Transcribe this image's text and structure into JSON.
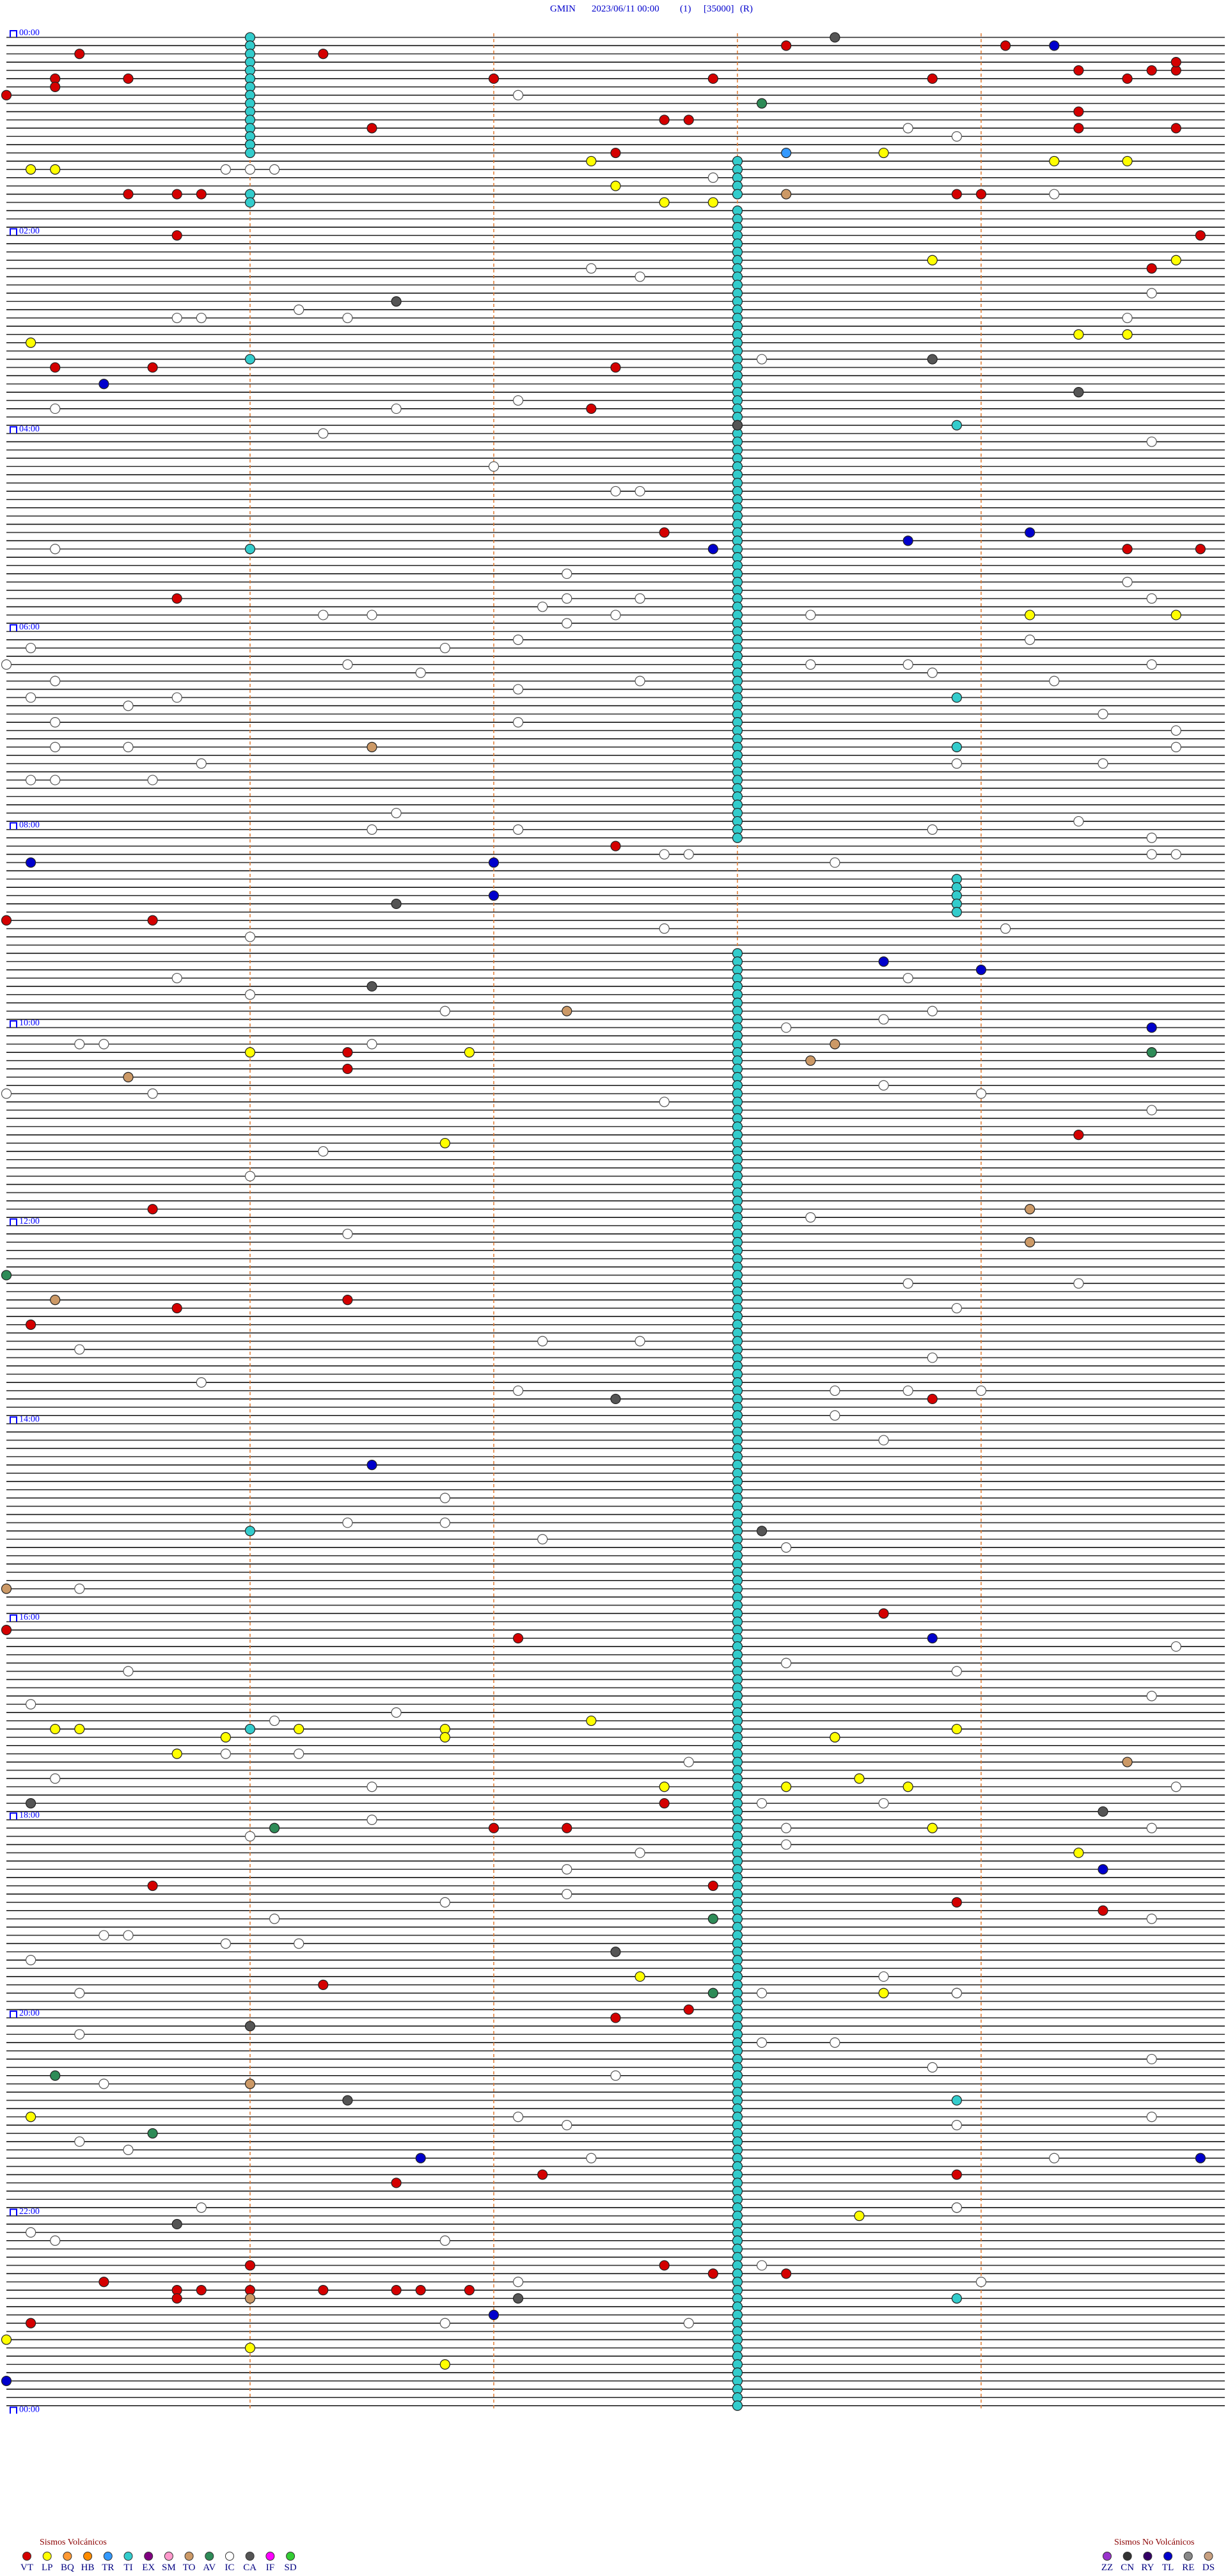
{
  "header": {
    "station": "GMIN",
    "datetime": "2023/06/11 00:00",
    "channel": "(1)",
    "scale": "[35000]",
    "mode": "(R)"
  },
  "hour_labels": [
    "00:00",
    "02:00",
    "04:00",
    "06:00",
    "08:00",
    "10:00",
    "12:00",
    "14:00",
    "16:00",
    "18:00",
    "20:00",
    "22:00",
    "00:00"
  ],
  "events": {
    "VT": [
      10.3,
      11.3,
      8.2,
      9.1,
      25.2,
      25.5,
      27,
      27.9,
      28.8,
      29.6,
      24.4,
      24.7,
      24.8,
      19.8,
      30.2,
      35,
      52.7,
      52.8,
      56.5,
      49.4,
      59.4,
      59.8,
      66,
      72.5,
      95.5,
      95.7,
      95.8,
      98.9,
      99,
      120.7,
      124.9,
      144.7,
      202.5,
      200.6,
      200.2,
      227.4,
      302.7,
      314.6,
      314.9,
      340.7,
      492.5,
      535,
      535.6,
      616.4,
      626.4,
      669.4,
      710.6,
      770.7,
      766.4,
      780.1,
      828.8,
      958.6,
      965,
      972.1,
      1072.7,
      1087,
      1087.3,
      1120.6,
      1122.9,
      1133.9,
      1139.5,
      1181.3,
      1197.8,
      1202.5,
      1298.9,
      1297.2,
      1301.6,
      1351,
      1360.4,
      1365.7,
      1365.8,
      1366,
      1366.3,
      1366.6,
      1366.7,
      1366.9,
      1370.7,
      1352.7,
      1357.9,
      1358,
      1358.2,
      1318,
      1385.1
    ],
    "LP": [
      80.1,
      80.2,
      77.4,
      92.5,
      102.7,
      102.9,
      73.6,
      79.3,
      79.6,
      138.8,
      139.8,
      185.1,
      184.4,
      184.6,
      354.2,
      354.8,
      616,
      616.9,
      671.8,
      1025.2,
      1025.3,
      1026.2,
      1026.8,
      1022.4,
      1030.9,
      1031.8,
      1033.4,
      1033.4,
      1028.9,
      1040.7,
      1062.7,
      1063.2,
      1058.5,
      1063.7,
      1088.8,
      1104.4,
      1177.6,
      1188.6,
      1260.1,
      1323.5,
      1401,
      1411.8,
      1395
    ],
    "TR": [
      1023,
      73.2
    ],
    "TI": [
      1,
      6,
      11,
      16,
      21,
      26,
      31,
      36,
      41,
      46,
      51,
      56,
      61,
      66,
      71,
      1026,
      96,
      101,
      196,
      311,
      906,
      238.9,
      403.9,
      433.9,
      513.9,
      518.9,
      523.9,
      528.9,
      533.9,
      1188.9,
      1253.9,
      1318.9,
      1373.9,
      78,
      83,
      88,
      93,
      98,
      108,
      113,
      118,
      123,
      128,
      133,
      138,
      143,
      148,
      153,
      158,
      163,
      168,
      173,
      178,
      183,
      188,
      193,
      198,
      203,
      208,
      213,
      218,
      223,
      228,
      233,
      238,
      243,
      248,
      253,
      258,
      263,
      268,
      273,
      278,
      283,
      288,
      293,
      298,
      303,
      308,
      313,
      318,
      323,
      328,
      333,
      338,
      343,
      348,
      353,
      358,
      363,
      368,
      373,
      378,
      383,
      388,
      393,
      398,
      403,
      408,
      413,
      418,
      423,
      428,
      433,
      438,
      443,
      448,
      453,
      458,
      463,
      468,
      473,
      478,
      483,
      488,
      558,
      563,
      568,
      573,
      578,
      583,
      588,
      593,
      598,
      603,
      608,
      613,
      618,
      623,
      628,
      633,
      638,
      643,
      648,
      653,
      658,
      663,
      668,
      673,
      678,
      683,
      688,
      693,
      698,
      703,
      708,
      713,
      718,
      723,
      728,
      733,
      738,
      743,
      748,
      753,
      758,
      763,
      768,
      773,
      778,
      783,
      788,
      793,
      798,
      803,
      808,
      813,
      818,
      823,
      828,
      833,
      838,
      843,
      848,
      853,
      858,
      863,
      868,
      873,
      878,
      883,
      888,
      893,
      898,
      903,
      908,
      913,
      918,
      923,
      928,
      933,
      938,
      943,
      948,
      953,
      958,
      963,
      968,
      973,
      978,
      983,
      988,
      993,
      998,
      1003,
      1008,
      1013,
      1018,
      1023,
      1028,
      1033,
      1038,
      1043,
      1048,
      1053,
      1058,
      1063,
      1068,
      1073,
      1078,
      1083,
      1088,
      1093,
      1098,
      1103,
      1108,
      1113,
      1118,
      1123,
      1128,
      1133,
      1138,
      1143,
      1148,
      1153,
      1158,
      1163,
      1168,
      1173,
      1178,
      1183,
      1188,
      1193,
      1198,
      1203,
      1208,
      1213,
      1218,
      1223,
      1228,
      1233,
      1238,
      1243,
      1248,
      1253,
      1258,
      1263,
      1268,
      1273,
      1278,
      1283,
      1288,
      1293,
      1298,
      1303,
      1308,
      1313,
      1318,
      1323,
      1328,
      1333,
      1338,
      1343,
      1348,
      1353,
      1358,
      1363,
      1368,
      1373,
      1378,
      1383,
      1388,
      1393,
      1398,
      1403,
      1408,
      1413,
      1418,
      1423,
      1428,
      1433,
      1438
    ],
    "AV": [
      43.1,
      619.7,
      750,
      1086.1,
      1142.9,
      1187.9,
      1235.2,
      1270.6
    ],
    "TO": [
      431.5,
      592.3,
      613.4,
      630.5,
      623.3,
      714.2,
      734.2,
      765.2,
      940,
      1049.6,
      1241,
      1371,
      98.2
    ],
    "IC": [
      37.1,
      58.7,
      63.9,
      80.9,
      81,
      81.1,
      87.9,
      99.3,
      142.4,
      147.6,
      159.7,
      166.2,
      170.7,
      170.8,
      171.4,
      174.6,
      198.1,
      225.2,
      226.6,
      222.1,
      241.3,
      249.7,
      262,
      277.5,
      277.6,
      310.2,
      327.3,
      334.6,
      342.3,
      342.6,
      344.7,
      347.2,
      351.3,
      351.5,
      352.5,
      353.3,
      357.3,
      367.1,
      370.1,
      371.8,
      369.2,
      381.4,
      380,
      383.3,
      383.7,
      384.7,
      386.7,
      390.2,
      392.6,
      388.8,
      394.3,
      400.1,
      400.7,
      397.1,
      405.5,
      414.5,
      415.2,
      417.1,
      424.8,
      430.2,
      430.5,
      434.8,
      440.8,
      444.5,
      443.9,
      450.1,
      450.2,
      450.6,
      471.6,
      479.4,
      481.5,
      483.8,
      482.1,
      497.7,
      497.8,
      503.4,
      489.7,
      499.7,
      499.8,
      544.1,
      542.7,
      546,
      570.7,
      573.7,
      581,
      591.8,
      593.8,
      610.3,
      610.4,
      611.5,
      598.6,
      603.2,
      640.6,
      638.6,
      644,
      647.7,
      640,
      654.7,
      676.3,
      691,
      718.3,
      726.4,
      758.7,
      759.4,
      773.9,
      795.3,
      792.2,
      792.6,
      803.8,
      815.8,
      822.1,
      823.4,
      823.7,
      838.4,
      824,
      853.6,
      886.8,
      901.4,
      901.8,
      912.2,
      918.2,
      940.3,
      979.8,
      990.5,
      988.2,
      993.9,
      1009.7,
      1010.1,
      1016.6,
      1021.1,
      1041.2,
      1040.9,
      1047.8,
      1055.2,
      1061.5,
      1064.8,
      1073.1,
      1073.6,
      1081.5,
      1088.2,
      1091,
      1098.2,
      1089.7,
      1102.6,
      1112.3,
      1127.3,
      1144.7,
      1131.8,
      1141.1,
      1150.4,
      1150.5,
      1155.9,
      1156.2,
      1165.1,
      1178.6,
      1188.9,
      1188.1,
      1185.3,
      1210.3,
      1218.1,
      1218.4,
      1229.7,
      1237.5,
      1233.8,
      1240.4,
      1262.1,
      1264.7,
      1267.3,
      1275.3,
      1268.9,
      1280.5,
      1287.4,
      1289.3,
      1315.8,
      1330.1,
      1335.2,
      1336.8,
      1318.9,
      1353.1,
      1362.1,
      1364,
      1386.8,
      1387.8
    ],
    "CA": [
      3.4,
      161.6,
      198.8,
      219.4,
      238,
      526.6,
      576.5,
      827.5,
      908.1,
      1070.1,
      1079.5,
      1162.5,
      1206,
      1251.4,
      1325.7,
      1372.1
    ],
    "TL": [
      9.3,
      312.9,
      308.7,
      304.2,
      500.1,
      502,
      522,
      563.6,
      569,
      604.7,
      866.5,
      973.8,
      1114.5,
      1286.7,
      1289.9,
      1382,
      1420,
      210.4
    ]
  },
  "legend": {
    "volcanic": {
      "title": "Sismos Volcánicos",
      "items": [
        {
          "code": "VT",
          "color": "#d40000"
        },
        {
          "code": "LP",
          "color": "#ffff00"
        },
        {
          "code": "BQ",
          "color": "#ff9933"
        },
        {
          "code": "HB",
          "color": "#ff8c00"
        },
        {
          "code": "TR",
          "color": "#3399ff"
        },
        {
          "code": "TI",
          "color": "#33cccc"
        },
        {
          "code": "EX",
          "color": "#800080"
        },
        {
          "code": "SM",
          "color": "#ff99cc"
        },
        {
          "code": "TO",
          "color": "#cc9966"
        },
        {
          "code": "AV",
          "color": "#2e8b57"
        },
        {
          "code": "IC",
          "color": "#ffffff"
        },
        {
          "code": "CA",
          "color": "#555555"
        },
        {
          "code": "IF",
          "color": "#ff00ff"
        },
        {
          "code": "SD",
          "color": "#33cc33"
        }
      ]
    },
    "non_volcanic": {
      "title": "Sismos No Volcánicos",
      "items": [
        {
          "code": "ZZ",
          "color": "#9933cc"
        },
        {
          "code": "CN",
          "color": "#333333"
        },
        {
          "code": "RY",
          "color": "#330066"
        },
        {
          "code": "TL",
          "color": "#0000cc"
        },
        {
          "code": "RE",
          "color": "#888888"
        },
        {
          "code": "DS",
          "color": "#c8a080"
        }
      ]
    }
  }
}
